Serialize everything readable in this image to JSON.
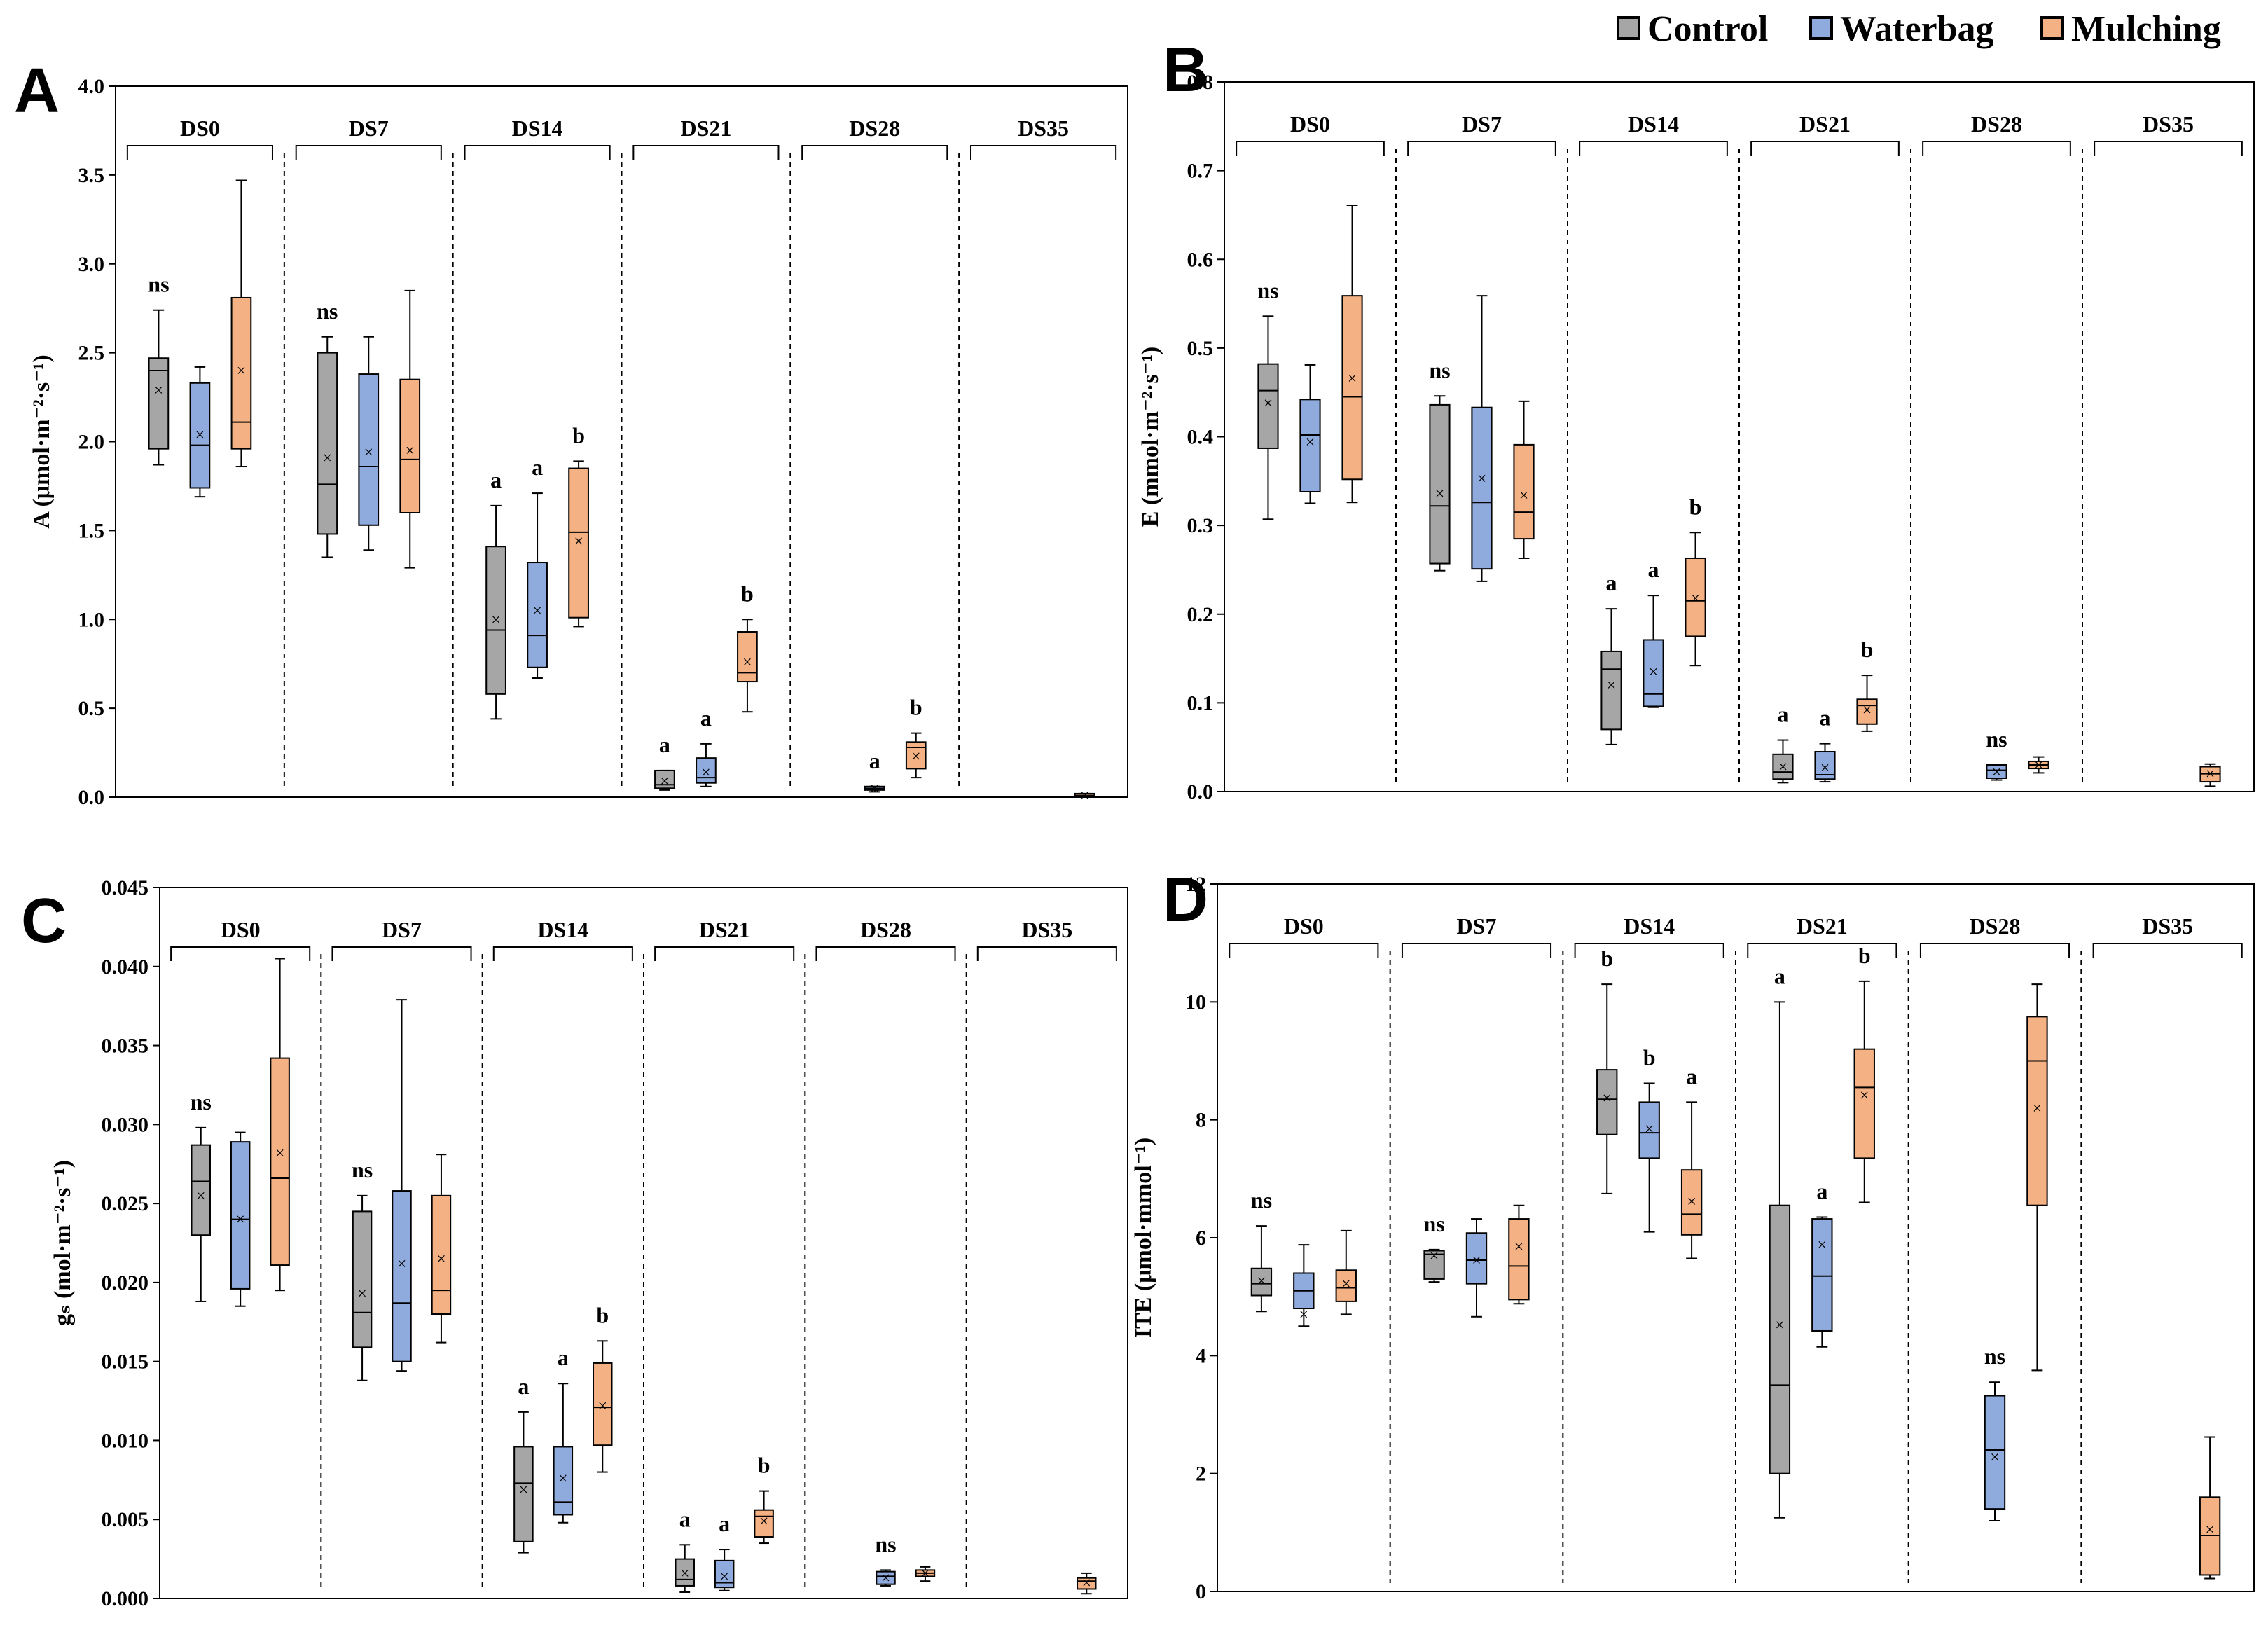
{
  "legend": {
    "items": [
      {
        "label": "Control",
        "color": "#a6a6a6"
      },
      {
        "label": "Waterbag",
        "color": "#8faadc"
      },
      {
        "label": "Mulching",
        "color": "#f4b183"
      }
    ]
  },
  "mean_marker": "×",
  "chart_data": [
    {
      "type": "box",
      "panel": "A",
      "ylabel": "A (μmol·m⁻²·s⁻¹)",
      "ylim": [
        0,
        4.0
      ],
      "yticks": [
        "0.0",
        "0.5",
        "1.0",
        "1.5",
        "2.0",
        "2.5",
        "3.0",
        "3.5",
        "4.0"
      ],
      "groups": [
        "DS0",
        "DS7",
        "DS14",
        "DS21",
        "DS28",
        "DS35"
      ],
      "series": [
        "Control",
        "Waterbag",
        "Mulching"
      ],
      "boxes": [
        [
          {
            "min": 1.87,
            "q1": 1.96,
            "median": 2.4,
            "q3": 2.47,
            "max": 2.74,
            "mean": 2.29,
            "label": "ns"
          },
          {
            "min": 1.69,
            "q1": 1.74,
            "median": 1.98,
            "q3": 2.33,
            "max": 2.42,
            "mean": 2.04,
            "label": ""
          },
          {
            "min": 1.86,
            "q1": 1.96,
            "median": 2.11,
            "q3": 2.81,
            "max": 3.47,
            "mean": 2.4,
            "label": ""
          }
        ],
        [
          {
            "min": 1.35,
            "q1": 1.48,
            "median": 1.76,
            "q3": 2.5,
            "max": 2.59,
            "mean": 1.91,
            "label": "ns"
          },
          {
            "min": 1.39,
            "q1": 1.53,
            "median": 1.86,
            "q3": 2.38,
            "max": 2.59,
            "mean": 1.94,
            "label": ""
          },
          {
            "min": 1.29,
            "q1": 1.6,
            "median": 1.9,
            "q3": 2.35,
            "max": 2.85,
            "mean": 1.95,
            "label": ""
          }
        ],
        [
          {
            "min": 0.44,
            "q1": 0.58,
            "median": 0.94,
            "q3": 1.41,
            "max": 1.64,
            "mean": 1.0,
            "label": "a"
          },
          {
            "min": 0.67,
            "q1": 0.73,
            "median": 0.91,
            "q3": 1.32,
            "max": 1.71,
            "mean": 1.05,
            "label": "a"
          },
          {
            "min": 0.96,
            "q1": 1.01,
            "median": 1.49,
            "q3": 1.85,
            "max": 1.89,
            "mean": 1.44,
            "label": "b"
          }
        ],
        [
          {
            "min": 0.04,
            "q1": 0.05,
            "median": 0.07,
            "q3": 0.15,
            "max": 0.15,
            "mean": 0.09,
            "label": "a"
          },
          {
            "min": 0.06,
            "q1": 0.08,
            "median": 0.11,
            "q3": 0.22,
            "max": 0.3,
            "mean": 0.14,
            "label": "a"
          },
          {
            "min": 0.48,
            "q1": 0.65,
            "median": 0.7,
            "q3": 0.93,
            "max": 1.0,
            "mean": 0.76,
            "label": "b"
          }
        ],
        [
          {
            "min": 0,
            "q1": 0,
            "median": 0,
            "q3": 0,
            "max": 0,
            "mean": 0,
            "label": ""
          },
          {
            "min": 0.03,
            "q1": 0.04,
            "median": 0.05,
            "q3": 0.06,
            "max": 0.06,
            "mean": 0.05,
            "label": "a"
          },
          {
            "min": 0.11,
            "q1": 0.16,
            "median": 0.28,
            "q3": 0.31,
            "max": 0.36,
            "mean": 0.23,
            "label": "b"
          }
        ],
        [
          {
            "min": 0,
            "q1": 0,
            "median": 0,
            "q3": 0,
            "max": 0,
            "mean": 0,
            "label": ""
          },
          {
            "min": 0,
            "q1": 0,
            "median": 0,
            "q3": 0,
            "max": 0,
            "mean": 0,
            "label": ""
          },
          {
            "min": 0.0,
            "q1": 0.005,
            "median": 0.01,
            "q3": 0.02,
            "max": 0.02,
            "mean": 0.01,
            "label": ""
          }
        ]
      ]
    },
    {
      "type": "box",
      "panel": "B",
      "ylabel": "E (mmol·m⁻²·s⁻¹)",
      "ylim": [
        0,
        0.8
      ],
      "yticks": [
        "0.0",
        "0.1",
        "0.2",
        "0.3",
        "0.4",
        "0.5",
        "0.6",
        "0.7",
        "0.8"
      ],
      "groups": [
        "DS0",
        "DS7",
        "DS14",
        "DS21",
        "DS28",
        "DS35"
      ],
      "series": [
        "Control",
        "Waterbag",
        "Mulching"
      ],
      "boxes": [
        [
          {
            "min": 0.307,
            "q1": 0.387,
            "median": 0.452,
            "q3": 0.482,
            "max": 0.536,
            "mean": 0.438,
            "label": "ns"
          },
          {
            "min": 0.325,
            "q1": 0.338,
            "median": 0.402,
            "q3": 0.442,
            "max": 0.481,
            "mean": 0.394,
            "label": ""
          },
          {
            "min": 0.326,
            "q1": 0.352,
            "median": 0.445,
            "q3": 0.559,
            "max": 0.661,
            "mean": 0.466,
            "label": ""
          }
        ],
        [
          {
            "min": 0.249,
            "q1": 0.257,
            "median": 0.322,
            "q3": 0.436,
            "max": 0.446,
            "mean": 0.336,
            "label": "ns"
          },
          {
            "min": 0.237,
            "q1": 0.251,
            "median": 0.326,
            "q3": 0.433,
            "max": 0.559,
            "mean": 0.353,
            "label": ""
          },
          {
            "min": 0.263,
            "q1": 0.285,
            "median": 0.315,
            "q3": 0.391,
            "max": 0.44,
            "mean": 0.334,
            "label": ""
          }
        ],
        [
          {
            "min": 0.053,
            "q1": 0.07,
            "median": 0.138,
            "q3": 0.158,
            "max": 0.206,
            "mean": 0.12,
            "label": "a"
          },
          {
            "min": 0.095,
            "q1": 0.096,
            "median": 0.11,
            "q3": 0.171,
            "max": 0.221,
            "mean": 0.135,
            "label": "a"
          },
          {
            "min": 0.142,
            "q1": 0.175,
            "median": 0.215,
            "q3": 0.263,
            "max": 0.292,
            "mean": 0.218,
            "label": "b"
          }
        ],
        [
          {
            "min": 0.01,
            "q1": 0.014,
            "median": 0.022,
            "q3": 0.042,
            "max": 0.058,
            "mean": 0.028,
            "label": "a"
          },
          {
            "min": 0.011,
            "q1": 0.014,
            "median": 0.019,
            "q3": 0.045,
            "max": 0.054,
            "mean": 0.027,
            "label": "a"
          },
          {
            "min": 0.068,
            "q1": 0.076,
            "median": 0.097,
            "q3": 0.104,
            "max": 0.131,
            "mean": 0.092,
            "label": "b"
          }
        ],
        [
          {
            "min": 0,
            "q1": 0,
            "median": 0,
            "q3": 0,
            "max": 0,
            "mean": 0,
            "label": ""
          },
          {
            "min": 0.013,
            "q1": 0.015,
            "median": 0.024,
            "q3": 0.03,
            "max": 0.03,
            "mean": 0.022,
            "label": "ns"
          },
          {
            "min": 0.021,
            "q1": 0.026,
            "median": 0.03,
            "q3": 0.034,
            "max": 0.039,
            "mean": 0.03,
            "label": ""
          }
        ],
        [
          {
            "min": 0,
            "q1": 0,
            "median": 0,
            "q3": 0,
            "max": 0,
            "mean": 0,
            "label": ""
          },
          {
            "min": 0,
            "q1": 0,
            "median": 0,
            "q3": 0,
            "max": 0,
            "mean": 0,
            "label": ""
          },
          {
            "min": 0.006,
            "q1": 0.011,
            "median": 0.02,
            "q3": 0.028,
            "max": 0.031,
            "mean": 0.02,
            "label": ""
          }
        ]
      ]
    },
    {
      "type": "box",
      "panel": "C",
      "ylabel": "gₛ (mol·m⁻²·s⁻¹)",
      "ylim": [
        0,
        0.045
      ],
      "yticks": [
        "0.000",
        "0.005",
        "0.010",
        "0.015",
        "0.020",
        "0.025",
        "0.030",
        "0.035",
        "0.040",
        "0.045"
      ],
      "groups": [
        "DS0",
        "DS7",
        "DS14",
        "DS21",
        "DS28",
        "DS35"
      ],
      "series": [
        "Control",
        "Waterbag",
        "Mulching"
      ],
      "boxes": [
        [
          {
            "min": 0.0188,
            "q1": 0.023,
            "median": 0.0264,
            "q3": 0.0287,
            "max": 0.0298,
            "mean": 0.0255,
            "label": "ns"
          },
          {
            "min": 0.0185,
            "q1": 0.0196,
            "median": 0.024,
            "q3": 0.0289,
            "max": 0.0295,
            "mean": 0.024,
            "label": ""
          },
          {
            "min": 0.0195,
            "q1": 0.0211,
            "median": 0.0266,
            "q3": 0.0342,
            "max": 0.0405,
            "mean": 0.0282,
            "label": ""
          }
        ],
        [
          {
            "min": 0.0138,
            "q1": 0.0159,
            "median": 0.0181,
            "q3": 0.0245,
            "max": 0.0255,
            "mean": 0.0193,
            "label": "ns"
          },
          {
            "min": 0.0144,
            "q1": 0.015,
            "median": 0.0187,
            "q3": 0.0258,
            "max": 0.0379,
            "mean": 0.0212,
            "label": ""
          },
          {
            "min": 0.0162,
            "q1": 0.018,
            "median": 0.0195,
            "q3": 0.0255,
            "max": 0.0281,
            "mean": 0.0215,
            "label": ""
          }
        ],
        [
          {
            "min": 0.0029,
            "q1": 0.0036,
            "median": 0.0073,
            "q3": 0.0096,
            "max": 0.0118,
            "mean": 0.0069,
            "label": "a"
          },
          {
            "min": 0.0048,
            "q1": 0.0053,
            "median": 0.0061,
            "q3": 0.0096,
            "max": 0.0136,
            "mean": 0.0076,
            "label": "a"
          },
          {
            "min": 0.008,
            "q1": 0.0097,
            "median": 0.0121,
            "q3": 0.0149,
            "max": 0.0163,
            "mean": 0.0122,
            "label": "b"
          }
        ],
        [
          {
            "min": 0.0004,
            "q1": 0.0008,
            "median": 0.0012,
            "q3": 0.0025,
            "max": 0.0034,
            "mean": 0.0016,
            "label": "a"
          },
          {
            "min": 0.0005,
            "q1": 0.0007,
            "median": 0.001,
            "q3": 0.0024,
            "max": 0.0031,
            "mean": 0.0014,
            "label": "a"
          },
          {
            "min": 0.0035,
            "q1": 0.0039,
            "median": 0.0052,
            "q3": 0.0056,
            "max": 0.0068,
            "mean": 0.0049,
            "label": "b"
          }
        ],
        [
          {
            "min": 0,
            "q1": 0,
            "median": 0,
            "q3": 0,
            "max": 0,
            "mean": 0,
            "label": ""
          },
          {
            "min": 0.0008,
            "q1": 0.0009,
            "median": 0.0014,
            "q3": 0.0017,
            "max": 0.0018,
            "mean": 0.0013,
            "label": "ns"
          },
          {
            "min": 0.0011,
            "q1": 0.0014,
            "median": 0.0016,
            "q3": 0.0018,
            "max": 0.002,
            "mean": 0.0016,
            "label": ""
          }
        ],
        [
          {
            "min": 0,
            "q1": 0,
            "median": 0,
            "q3": 0,
            "max": 0,
            "mean": 0,
            "label": ""
          },
          {
            "min": 0,
            "q1": 0,
            "median": 0,
            "q3": 0,
            "max": 0,
            "mean": 0,
            "label": ""
          },
          {
            "min": 0.0003,
            "q1": 0.0006,
            "median": 0.0011,
            "q3": 0.0013,
            "max": 0.0016,
            "mean": 0.001,
            "label": ""
          }
        ]
      ]
    },
    {
      "type": "box",
      "panel": "D",
      "ylabel": "ITE (μmol·mmol⁻¹)",
      "ylim": [
        0,
        12
      ],
      "yticks": [
        "0",
        "2",
        "4",
        "6",
        "8",
        "10",
        "12"
      ],
      "groups": [
        "DS0",
        "DS7",
        "DS14",
        "DS21",
        "DS28",
        "DS35"
      ],
      "series": [
        "Control",
        "Waterbag",
        "Mulching"
      ],
      "boxes": [
        [
          {
            "min": 4.75,
            "q1": 5.02,
            "median": 5.22,
            "q3": 5.48,
            "max": 6.2,
            "mean": 5.27,
            "label": "ns"
          },
          {
            "min": 4.5,
            "q1": 4.8,
            "median": 5.1,
            "q3": 5.4,
            "max": 5.88,
            "mean": 4.7,
            "label": ""
          },
          {
            "min": 4.7,
            "q1": 4.92,
            "median": 5.15,
            "q3": 5.45,
            "max": 6.12,
            "mean": 5.22,
            "label": ""
          }
        ],
        [
          {
            "min": 5.25,
            "q1": 5.3,
            "median": 5.72,
            "q3": 5.78,
            "max": 5.8,
            "mean": 5.7,
            "label": "ns"
          },
          {
            "min": 4.66,
            "q1": 5.22,
            "median": 5.62,
            "q3": 6.08,
            "max": 6.32,
            "mean": 5.62,
            "label": ""
          },
          {
            "min": 4.88,
            "q1": 4.95,
            "median": 5.52,
            "q3": 6.32,
            "max": 6.55,
            "mean": 5.85,
            "label": ""
          }
        ],
        [
          {
            "min": 6.75,
            "q1": 7.75,
            "median": 8.35,
            "q3": 8.85,
            "max": 10.3,
            "mean": 8.37,
            "label": "b"
          },
          {
            "min": 6.1,
            "q1": 7.35,
            "median": 7.78,
            "q3": 8.3,
            "max": 8.62,
            "mean": 7.85,
            "label": "b"
          },
          {
            "min": 5.65,
            "q1": 6.05,
            "median": 6.4,
            "q3": 7.15,
            "max": 8.3,
            "mean": 6.62,
            "label": "a"
          }
        ],
        [
          {
            "min": 1.25,
            "q1": 2.0,
            "median": 3.5,
            "q3": 6.55,
            "max": 10.0,
            "mean": 4.52,
            "label": "a"
          },
          {
            "min": 4.15,
            "q1": 4.42,
            "median": 5.35,
            "q3": 6.32,
            "max": 6.35,
            "mean": 5.88,
            "label": "a"
          },
          {
            "min": 6.6,
            "q1": 7.35,
            "median": 8.55,
            "q3": 9.2,
            "max": 10.35,
            "mean": 8.42,
            "label": "b"
          }
        ],
        [
          {
            "min": 0,
            "q1": 0,
            "median": 0,
            "q3": 0,
            "max": 0,
            "mean": 0,
            "label": ""
          },
          {
            "min": 1.2,
            "q1": 1.4,
            "median": 2.4,
            "q3": 3.32,
            "max": 3.55,
            "mean": 2.28,
            "label": "ns"
          },
          {
            "min": 3.75,
            "q1": 6.55,
            "median": 9.0,
            "q3": 9.75,
            "max": 10.3,
            "mean": 8.2,
            "label": ""
          }
        ],
        [
          {
            "min": 0,
            "q1": 0,
            "median": 0,
            "q3": 0,
            "max": 0,
            "mean": 0,
            "label": ""
          },
          {
            "min": 0,
            "q1": 0,
            "median": 0,
            "q3": 0,
            "max": 0,
            "mean": 0,
            "label": ""
          },
          {
            "min": 0.22,
            "q1": 0.28,
            "median": 0.95,
            "q3": 1.6,
            "max": 2.62,
            "mean": 1.05,
            "label": ""
          }
        ]
      ]
    }
  ]
}
